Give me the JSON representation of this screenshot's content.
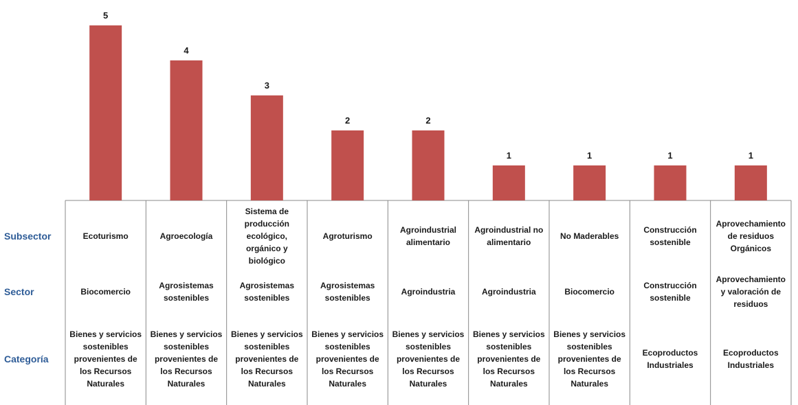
{
  "chart_data": {
    "type": "bar",
    "level_labels": [
      "Subsector",
      "Sector",
      "Categoría"
    ],
    "categories": [
      "Ecoturismo",
      "Agroecología",
      "Sistema de producción ecológico, orgánico y biológico",
      "Agroturismo",
      "Agroindustrial alimentario",
      "Agroindustrial no alimentario",
      "No Maderables",
      "Construcción sostenible",
      "Aprovechamiento de residuos Orgánicos"
    ],
    "sectors": [
      "Biocomercio",
      "Agrosistemas sostenibles",
      "Agrosistemas sostenibles",
      "Agrosistemas sostenibles",
      "Agroindustria",
      "Agroindustria",
      "Biocomercio",
      "Construcción sostenible",
      "Aprovechamiento y valoración de residuos"
    ],
    "categorias": [
      "Bienes y servicios sostenibles provenientes de los Recursos Naturales",
      "Bienes y servicios sostenibles provenientes de los Recursos Naturales",
      "Bienes y servicios sostenibles provenientes de los Recursos Naturales",
      "Bienes y servicios sostenibles provenientes de los Recursos Naturales",
      "Bienes y servicios sostenibles provenientes de los Recursos Naturales",
      "Bienes y servicios sostenibles provenientes de los Recursos Naturales",
      "Bienes y servicios sostenibles provenientes de los Recursos Naturales",
      "Ecoproductos Industriales",
      "Ecoproductos Industriales"
    ],
    "values": [
      5,
      4,
      3,
      2,
      2,
      1,
      1,
      1,
      1
    ],
    "color": "#c0504d",
    "ylim": [
      0,
      5
    ]
  }
}
